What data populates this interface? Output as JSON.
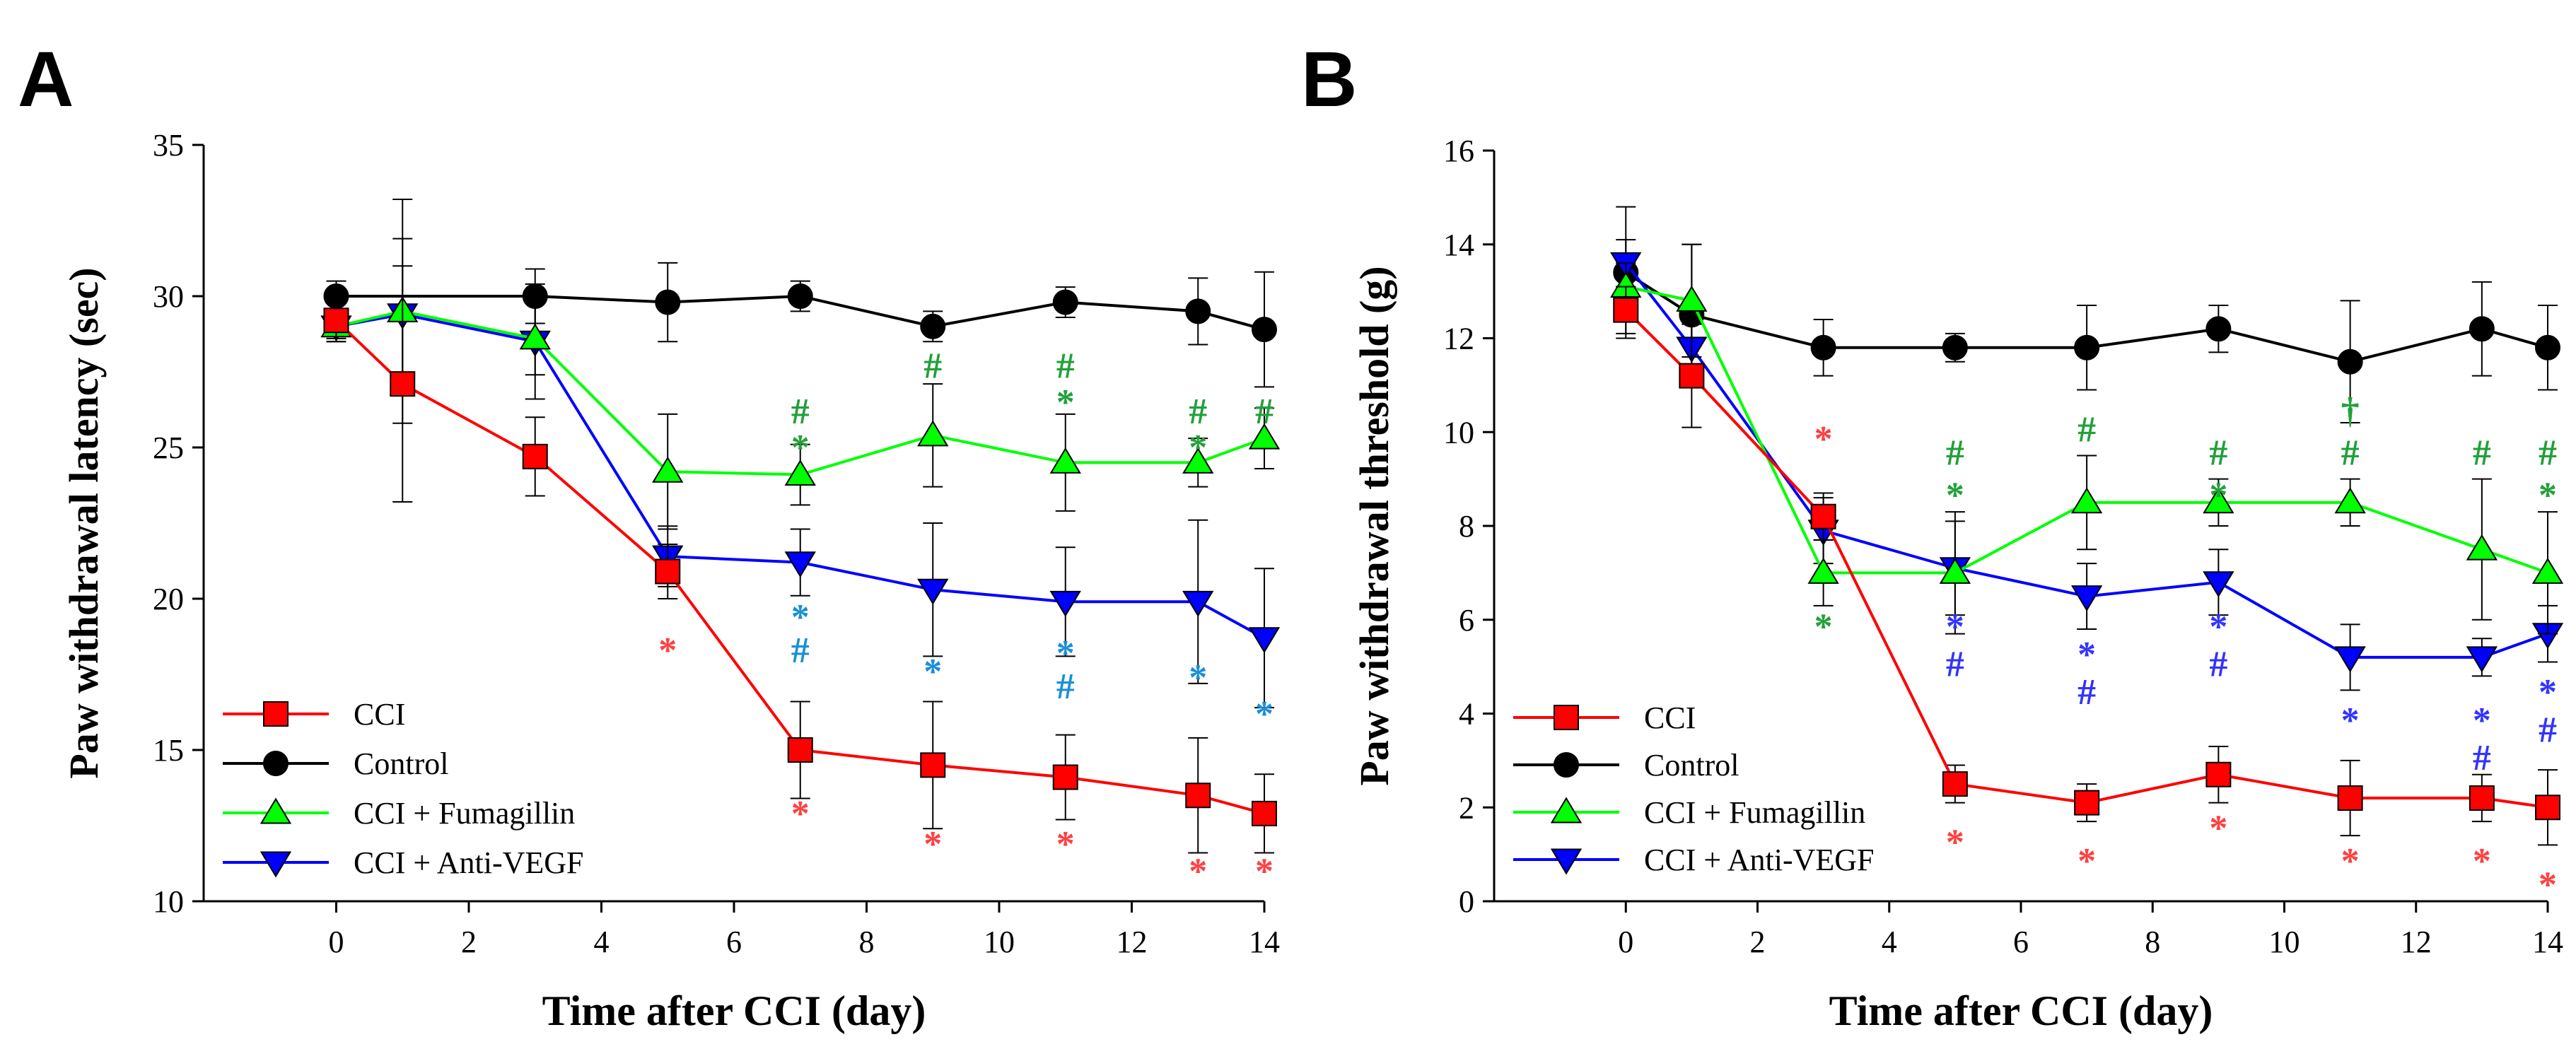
{
  "colors": {
    "cci": "#ff0000",
    "control": "#000000",
    "fumagillin": "#00ff00",
    "antivegf": "#0000ff",
    "sig_red": "#ff4040",
    "sig_green": "#22a03a",
    "sig_blue_a": "#1a8fd6",
    "sig_blue_b": "#3333ff"
  },
  "chart_data": [
    {
      "panel_label": "A",
      "type": "line",
      "title": "",
      "xlabel": "Time after CCI (day)",
      "ylabel": "Paw withdrawal latency (sec)",
      "xlim": [
        -2,
        14
      ],
      "ylim": [
        10,
        35
      ],
      "xticks": [
        0,
        2,
        4,
        6,
        8,
        10,
        12,
        14
      ],
      "yticks": [
        10,
        15,
        20,
        25,
        30,
        35
      ],
      "series": [
        {
          "key": "control",
          "name": "Control",
          "marker": "circle",
          "x": [
            0,
            3,
            5,
            7,
            9,
            11,
            13,
            14
          ],
          "values": [
            30.0,
            30.0,
            29.8,
            30.0,
            29.0,
            29.8,
            29.5,
            28.9
          ],
          "err": [
            0.5,
            0.9,
            1.3,
            0.5,
            0.5,
            0.5,
            1.1,
            1.9
          ]
        },
        {
          "key": "cci",
          "name": "CCI",
          "marker": "square",
          "x": [
            0,
            1,
            3,
            5,
            7,
            9,
            11,
            13,
            14
          ],
          "values": [
            29.2,
            27.1,
            24.7,
            20.9,
            15.0,
            14.5,
            14.1,
            13.5,
            12.9
          ],
          "err": [
            0.6,
            3.9,
            1.3,
            0.9,
            1.6,
            2.1,
            1.4,
            1.9,
            1.3
          ]
        },
        {
          "key": "fumagillin",
          "name": "CCI + Fumagillin",
          "marker": "triangle-up",
          "x": [
            0,
            1,
            3,
            5,
            7,
            9,
            11,
            13,
            14
          ],
          "values": [
            29.0,
            29.5,
            28.6,
            24.2,
            24.1,
            25.4,
            24.5,
            24.5,
            25.3
          ],
          "err": [
            0.5,
            3.7,
            1.2,
            1.9,
            1.0,
            1.7,
            1.6,
            0.8,
            1.0
          ]
        },
        {
          "key": "antivegf",
          "name": "CCI + Anti-VEGF",
          "marker": "triangle-down",
          "x": [
            0,
            1,
            3,
            5,
            7,
            9,
            11,
            13,
            14
          ],
          "values": [
            29.0,
            29.4,
            28.5,
            21.4,
            21.2,
            20.3,
            19.9,
            19.9,
            18.7
          ],
          "err": [
            0.5,
            2.5,
            1.9,
            1.0,
            1.1,
            2.2,
            1.8,
            2.7,
            2.3
          ]
        }
      ],
      "annotations": [
        {
          "text": "*",
          "x": 5,
          "y": 17.9,
          "color": "sig_red"
        },
        {
          "text": "*",
          "x": 7,
          "y": 12.5,
          "color": "sig_red"
        },
        {
          "text": "*",
          "x": 9,
          "y": 11.5,
          "color": "sig_red"
        },
        {
          "text": "*",
          "x": 11,
          "y": 11.5,
          "color": "sig_red"
        },
        {
          "text": "*",
          "x": 13,
          "y": 10.6,
          "color": "sig_red"
        },
        {
          "text": "*",
          "x": 14,
          "y": 10.6,
          "color": "sig_red"
        },
        {
          "text": "#",
          "x": 7,
          "y": 25.8,
          "color": "sig_green"
        },
        {
          "text": "*",
          "x": 7,
          "y": 24.6,
          "color": "sig_green"
        },
        {
          "text": "#",
          "x": 9,
          "y": 27.3,
          "color": "sig_green"
        },
        {
          "text": "#",
          "x": 11,
          "y": 27.3,
          "color": "sig_green"
        },
        {
          "text": "*",
          "x": 11,
          "y": 26.1,
          "color": "sig_green"
        },
        {
          "text": "#",
          "x": 13,
          "y": 25.8,
          "color": "sig_green"
        },
        {
          "text": "*",
          "x": 13,
          "y": 24.6,
          "color": "sig_green"
        },
        {
          "text": "#",
          "x": 14,
          "y": 25.8,
          "color": "sig_green"
        },
        {
          "text": "*",
          "x": 7,
          "y": 19.0,
          "color": "sig_blue_a"
        },
        {
          "text": "#",
          "x": 7,
          "y": 17.9,
          "color": "sig_blue_a"
        },
        {
          "text": "*",
          "x": 9,
          "y": 17.2,
          "color": "sig_blue_a"
        },
        {
          "text": "*",
          "x": 11,
          "y": 17.8,
          "color": "sig_blue_a"
        },
        {
          "text": "#",
          "x": 11,
          "y": 16.7,
          "color": "sig_blue_a"
        },
        {
          "text": "*",
          "x": 13,
          "y": 17.0,
          "color": "sig_blue_a"
        },
        {
          "text": "*",
          "x": 14,
          "y": 15.8,
          "color": "sig_blue_a"
        }
      ],
      "legend": {
        "position": "bottom-left",
        "entries": [
          "CCI",
          "Control",
          "CCI + Fumagillin",
          "CCI + Anti-VEGF"
        ]
      }
    },
    {
      "panel_label": "B",
      "type": "line",
      "title": "",
      "xlabel": "Time after CCI (day)",
      "ylabel": "Paw withdrawal threshold (g)",
      "xlim": [
        -2,
        14
      ],
      "ylim": [
        0,
        16
      ],
      "xticks": [
        0,
        2,
        4,
        6,
        8,
        10,
        12,
        14
      ],
      "yticks": [
        0,
        2,
        4,
        6,
        8,
        10,
        12,
        14,
        16
      ],
      "series": [
        {
          "key": "control",
          "name": "Control",
          "marker": "circle",
          "x": [
            0,
            1,
            3,
            5,
            7,
            9,
            11,
            13,
            14
          ],
          "values": [
            13.4,
            12.5,
            11.8,
            11.8,
            11.8,
            12.2,
            11.5,
            12.2,
            11.8
          ],
          "err": [
            1.4,
            1.5,
            0.6,
            0.3,
            0.9,
            0.5,
            1.3,
            1.0,
            0.9
          ]
        },
        {
          "key": "cci",
          "name": "CCI",
          "marker": "square",
          "x": [
            0,
            1,
            3,
            5,
            7,
            9,
            11,
            13,
            14
          ],
          "values": [
            12.6,
            11.2,
            8.2,
            2.5,
            2.1,
            2.7,
            2.2,
            2.2,
            2.0
          ],
          "err": [
            0.5,
            1.1,
            0.5,
            0.4,
            0.4,
            0.6,
            0.8,
            0.5,
            0.8
          ]
        },
        {
          "key": "fumagillin",
          "name": "CCI + Fumagillin",
          "marker": "triangle-up",
          "x": [
            0,
            1,
            3,
            5,
            7,
            9,
            11,
            13,
            14
          ],
          "values": [
            13.1,
            12.8,
            7.0,
            7.0,
            8.5,
            8.5,
            8.5,
            7.5,
            7.0
          ],
          "err": [
            0.5,
            1.2,
            0.7,
            1.3,
            1.0,
            0.5,
            0.5,
            1.5,
            1.3
          ]
        },
        {
          "key": "antivegf",
          "name": "CCI + Anti-VEGF",
          "marker": "triangle-down",
          "x": [
            0,
            1,
            3,
            5,
            7,
            9,
            11,
            13,
            14
          ],
          "values": [
            13.6,
            11.8,
            7.9,
            7.1,
            6.5,
            6.8,
            5.2,
            5.2,
            5.7
          ],
          "err": [
            0.5,
            0.6,
            0.7,
            1.0,
            0.7,
            0.7,
            0.7,
            0.4,
            0.6
          ]
        }
      ],
      "annotations": [
        {
          "text": "*",
          "x": 3,
          "y": 9.6,
          "color": "sig_red"
        },
        {
          "text": "*",
          "x": 5,
          "y": 1.0,
          "color": "sig_red"
        },
        {
          "text": "*",
          "x": 7,
          "y": 0.6,
          "color": "sig_red"
        },
        {
          "text": "*",
          "x": 9,
          "y": 1.3,
          "color": "sig_red"
        },
        {
          "text": "*",
          "x": 11,
          "y": 0.6,
          "color": "sig_red"
        },
        {
          "text": "*",
          "x": 13,
          "y": 0.6,
          "color": "sig_red"
        },
        {
          "text": "*",
          "x": 14,
          "y": 0.1,
          "color": "sig_red"
        },
        {
          "text": "*",
          "x": 3,
          "y": 5.6,
          "color": "sig_green"
        },
        {
          "text": "#",
          "x": 5,
          "y": 9.3,
          "color": "sig_green"
        },
        {
          "text": "*",
          "x": 5,
          "y": 8.4,
          "color": "sig_green"
        },
        {
          "text": "#",
          "x": 7,
          "y": 9.8,
          "color": "sig_green"
        },
        {
          "text": "#",
          "x": 9,
          "y": 9.3,
          "color": "sig_green"
        },
        {
          "text": "*",
          "x": 9,
          "y": 8.4,
          "color": "sig_green"
        },
        {
          "text": "†",
          "x": 11,
          "y": 10.2,
          "color": "sig_green"
        },
        {
          "text": "#",
          "x": 11,
          "y": 9.3,
          "color": "sig_green"
        },
        {
          "text": "#",
          "x": 13,
          "y": 9.3,
          "color": "sig_green"
        },
        {
          "text": "#",
          "x": 14,
          "y": 9.3,
          "color": "sig_green"
        },
        {
          "text": "*",
          "x": 14,
          "y": 8.4,
          "color": "sig_green"
        },
        {
          "text": "*",
          "x": 5,
          "y": 5.6,
          "color": "sig_blue_b"
        },
        {
          "text": "#",
          "x": 5,
          "y": 4.8,
          "color": "sig_blue_b"
        },
        {
          "text": "*",
          "x": 7,
          "y": 5.0,
          "color": "sig_blue_b"
        },
        {
          "text": "#",
          "x": 7,
          "y": 4.2,
          "color": "sig_blue_b"
        },
        {
          "text": "*",
          "x": 9,
          "y": 5.6,
          "color": "sig_blue_b"
        },
        {
          "text": "#",
          "x": 9,
          "y": 4.8,
          "color": "sig_blue_b"
        },
        {
          "text": "*",
          "x": 11,
          "y": 3.6,
          "color": "sig_blue_b"
        },
        {
          "text": "*",
          "x": 13,
          "y": 3.6,
          "color": "sig_blue_b"
        },
        {
          "text": "#",
          "x": 13,
          "y": 2.8,
          "color": "sig_blue_b"
        },
        {
          "text": "*",
          "x": 14,
          "y": 4.2,
          "color": "sig_blue_b"
        },
        {
          "text": "#",
          "x": 14,
          "y": 3.4,
          "color": "sig_blue_b"
        }
      ],
      "legend": {
        "position": "bottom-left",
        "entries": [
          "CCI",
          "Control",
          "CCI + Fumagillin",
          "CCI + Anti-VEGF"
        ]
      }
    }
  ]
}
